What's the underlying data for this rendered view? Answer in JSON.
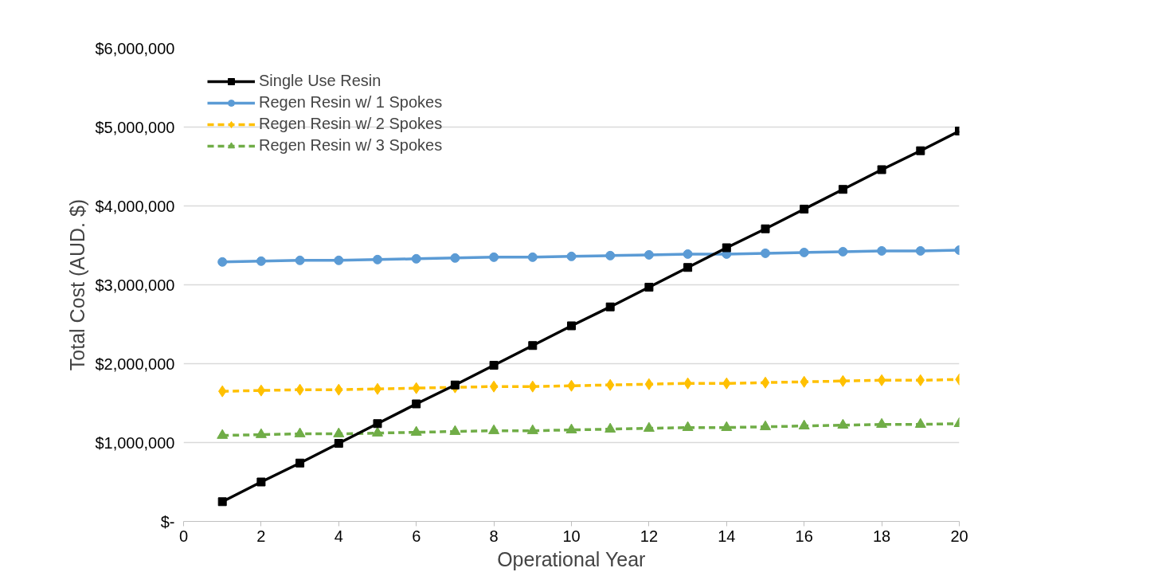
{
  "chart_data": {
    "type": "line",
    "xlabel": "Operational Year",
    "ylabel": "Total Cost (AUD. $)",
    "x": [
      1,
      2,
      3,
      4,
      5,
      6,
      7,
      8,
      9,
      10,
      11,
      12,
      13,
      14,
      15,
      16,
      17,
      18,
      19,
      20
    ],
    "series": [
      {
        "name": "Single Use Resin",
        "color": "#000000",
        "marker": "square",
        "line_style": "solid",
        "values": [
          250000,
          500000,
          740000,
          990000,
          1240000,
          1490000,
          1730000,
          1980000,
          2230000,
          2480000,
          2720000,
          2970000,
          3220000,
          3470000,
          3710000,
          3960000,
          4210000,
          4460000,
          4700000,
          4950000
        ]
      },
      {
        "name": "Regen Resin w/ 1 Spokes",
        "color": "#5b9bd5",
        "marker": "circle",
        "line_style": "solid",
        "values": [
          3290000,
          3300000,
          3310000,
          3310000,
          3320000,
          3330000,
          3340000,
          3350000,
          3350000,
          3360000,
          3370000,
          3380000,
          3390000,
          3390000,
          3400000,
          3410000,
          3420000,
          3430000,
          3430000,
          3440000
        ]
      },
      {
        "name": "Regen Resin w/ 2 Spokes",
        "color": "#ffc000",
        "marker": "diamond",
        "line_style": "dashed",
        "values": [
          1650000,
          1660000,
          1670000,
          1670000,
          1680000,
          1690000,
          1700000,
          1710000,
          1710000,
          1720000,
          1730000,
          1740000,
          1750000,
          1750000,
          1760000,
          1770000,
          1780000,
          1790000,
          1790000,
          1800000
        ]
      },
      {
        "name": "Regen Resin w/ 3 Spokes",
        "color": "#70ad47",
        "marker": "triangle",
        "line_style": "dashed",
        "values": [
          1090000,
          1100000,
          1110000,
          1110000,
          1120000,
          1130000,
          1140000,
          1150000,
          1150000,
          1160000,
          1170000,
          1180000,
          1190000,
          1190000,
          1200000,
          1210000,
          1220000,
          1230000,
          1230000,
          1240000
        ]
      }
    ],
    "xlim": [
      0,
      20
    ],
    "xticks": [
      0,
      2,
      4,
      6,
      8,
      10,
      12,
      14,
      16,
      18,
      20
    ],
    "ylim": [
      0,
      6000000
    ],
    "yticks": [
      {
        "value": 0,
        "label": "$-"
      },
      {
        "value": 1000000,
        "label": "$1,000,000"
      },
      {
        "value": 2000000,
        "label": "$2,000,000"
      },
      {
        "value": 3000000,
        "label": "$3,000,000"
      },
      {
        "value": 4000000,
        "label": "$4,000,000"
      },
      {
        "value": 5000000,
        "label": "$5,000,000"
      },
      {
        "value": 6000000,
        "label": "$6,000,000"
      }
    ],
    "grid": "y",
    "legend": "top left"
  }
}
